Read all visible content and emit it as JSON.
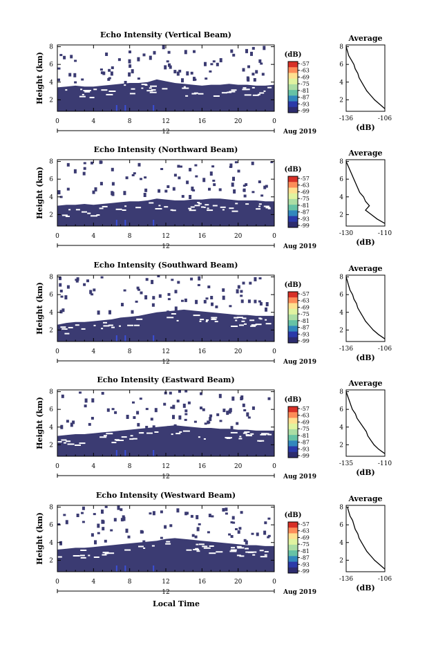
{
  "chart_data": [
    {
      "type": "heatmap",
      "title": "Echo Intensity (Vertical Beam)",
      "ylabel": "Height (km)",
      "x_ticks": [
        "0",
        "4",
        "8",
        "12",
        "16",
        "20",
        "0"
      ],
      "x_tick_values": [
        0,
        4,
        8,
        12,
        16,
        20,
        24
      ],
      "date_tick": "12",
      "date_label": "Aug 2019",
      "y_ticks": [
        "2",
        "4",
        "6",
        "8"
      ],
      "y_tick_values": [
        2,
        4,
        6,
        8
      ],
      "xlim": [
        0,
        24
      ],
      "ylim": [
        0.7,
        8.2
      ],
      "colorbar": {
        "unit": "(dB)",
        "labels": [
          "-57",
          "-63",
          "-69",
          "-75",
          "-81",
          "-87",
          "-93",
          "-99"
        ]
      },
      "echo_top_km": [
        3.4,
        3.5,
        3.6,
        3.5,
        3.5,
        3.6,
        3.7,
        3.8,
        3.9,
        3.9,
        4.0,
        4.3,
        4.1,
        3.9,
        3.8,
        3.7,
        3.6,
        3.7,
        3.7,
        3.8,
        3.7,
        3.7,
        3.6,
        3.6,
        3.7
      ],
      "profile": {
        "title": "Average",
        "xlabel": "(dB)",
        "x_ticks": [
          "-136",
          "-106"
        ],
        "x_tick_values": [
          -136,
          -106
        ],
        "xlim": [
          -136,
          -106
        ],
        "ylim": [
          0.7,
          8.2
        ],
        "y_ticks": [
          "2",
          "4",
          "6",
          "8"
        ],
        "height_km": [
          8.0,
          7.5,
          7.0,
          6.5,
          6.0,
          5.5,
          5.0,
          4.5,
          4.0,
          3.5,
          3.0,
          2.5,
          2.0,
          1.5,
          1.0
        ],
        "values_db": [
          -136,
          -135,
          -134,
          -132,
          -130,
          -129,
          -127,
          -126,
          -124,
          -122,
          -120,
          -117,
          -114,
          -110,
          -106
        ]
      }
    },
    {
      "type": "heatmap",
      "title": "Echo Intensity (Northward Beam)",
      "ylabel": "Height (km)",
      "x_ticks": [
        "0",
        "4",
        "8",
        "12",
        "16",
        "20",
        "0"
      ],
      "x_tick_values": [
        0,
        4,
        8,
        12,
        16,
        20,
        24
      ],
      "date_tick": "12",
      "date_label": "Aug 2019",
      "y_ticks": [
        "2",
        "4",
        "6",
        "8"
      ],
      "y_tick_values": [
        2,
        4,
        6,
        8
      ],
      "xlim": [
        0,
        24
      ],
      "ylim": [
        0.7,
        8.2
      ],
      "colorbar": {
        "unit": "(dB)",
        "labels": [
          "-57",
          "-63",
          "-69",
          "-75",
          "-81",
          "-87",
          "-93",
          "-99"
        ]
      },
      "echo_top_km": [
        3.0,
        3.1,
        3.1,
        3.2,
        3.1,
        3.2,
        3.3,
        3.4,
        3.5,
        3.5,
        3.6,
        3.8,
        3.7,
        3.6,
        3.6,
        3.7,
        3.7,
        3.8,
        3.8,
        3.7,
        3.6,
        3.6,
        3.6,
        3.5,
        3.5
      ],
      "profile": {
        "title": "Average",
        "xlabel": "(dB)",
        "x_ticks": [
          "-130",
          "-110"
        ],
        "x_tick_values": [
          -130,
          -110
        ],
        "xlim": [
          -130,
          -110
        ],
        "ylim": [
          0.7,
          8.2
        ],
        "y_ticks": [
          "2",
          "4",
          "6",
          "8"
        ],
        "height_km": [
          8.0,
          7.5,
          7.0,
          6.5,
          6.0,
          5.5,
          5.0,
          4.5,
          4.0,
          3.5,
          3.0,
          2.5,
          2.0,
          1.5,
          1.0
        ],
        "values_db": [
          -130,
          -129,
          -128,
          -127,
          -126,
          -125,
          -124,
          -123,
          -121,
          -120,
          -118,
          -120,
          -117,
          -114,
          -110
        ]
      }
    },
    {
      "type": "heatmap",
      "title": "Echo Intensity (Southward Beam)",
      "ylabel": "Height (km)",
      "x_ticks": [
        "0",
        "4",
        "8",
        "12",
        "16",
        "20",
        "0"
      ],
      "x_tick_values": [
        0,
        4,
        8,
        12,
        16,
        20,
        24
      ],
      "date_tick": "12",
      "date_label": "Aug 2019",
      "y_ticks": [
        "2",
        "4",
        "6",
        "8"
      ],
      "y_tick_values": [
        2,
        4,
        6,
        8
      ],
      "xlim": [
        0,
        24
      ],
      "ylim": [
        0.7,
        8.2
      ],
      "colorbar": {
        "unit": "(dB)",
        "labels": [
          "-57",
          "-63",
          "-69",
          "-75",
          "-81",
          "-87",
          "-93",
          "-99"
        ]
      },
      "echo_top_km": [
        2.6,
        2.8,
        2.9,
        2.9,
        3.0,
        3.1,
        3.2,
        3.4,
        3.5,
        3.6,
        3.8,
        4.0,
        4.1,
        4.2,
        4.3,
        4.2,
        4.1,
        4.0,
        3.9,
        3.8,
        3.7,
        3.7,
        3.6,
        3.6,
        3.6
      ],
      "profile": {
        "title": "Average",
        "xlabel": "(dB)",
        "x_ticks": [
          "-136",
          "-106"
        ],
        "x_tick_values": [
          -136,
          -106
        ],
        "xlim": [
          -136,
          -106
        ],
        "ylim": [
          0.7,
          8.2
        ],
        "y_ticks": [
          "2",
          "4",
          "6",
          "8"
        ],
        "height_km": [
          8.0,
          7.5,
          7.0,
          6.5,
          6.0,
          5.5,
          5.0,
          4.5,
          4.0,
          3.5,
          3.0,
          2.5,
          2.0,
          1.5,
          1.0
        ],
        "values_db": [
          -136,
          -135,
          -134,
          -133,
          -131,
          -130,
          -128,
          -127,
          -125,
          -123,
          -121,
          -118,
          -115,
          -111,
          -106
        ]
      }
    },
    {
      "type": "heatmap",
      "title": "Echo Intensity (Eastward Beam)",
      "ylabel": "Height (km)",
      "x_ticks": [
        "0",
        "4",
        "8",
        "12",
        "16",
        "20",
        "0"
      ],
      "x_tick_values": [
        0,
        4,
        8,
        12,
        16,
        20,
        24
      ],
      "date_tick": "12",
      "date_label": "Aug 2019",
      "y_ticks": [
        "2",
        "4",
        "6",
        "8"
      ],
      "y_tick_values": [
        2,
        4,
        6,
        8
      ],
      "xlim": [
        0,
        24
      ],
      "ylim": [
        0.7,
        8.2
      ],
      "colorbar": {
        "unit": "(dB)",
        "labels": [
          "-57",
          "-63",
          "-69",
          "-75",
          "-81",
          "-87",
          "-93",
          "-99"
        ]
      },
      "echo_top_km": [
        3.0,
        3.1,
        3.2,
        3.2,
        3.3,
        3.4,
        3.5,
        3.6,
        3.7,
        3.8,
        3.9,
        4.0,
        4.1,
        4.2,
        4.1,
        4.0,
        3.9,
        3.9,
        3.8,
        3.8,
        3.7,
        3.7,
        3.6,
        3.6,
        3.6
      ],
      "profile": {
        "title": "Average",
        "xlabel": "(dB)",
        "x_ticks": [
          "-135",
          "-110"
        ],
        "x_tick_values": [
          -135,
          -110
        ],
        "xlim": [
          -135,
          -110
        ],
        "ylim": [
          0.7,
          8.2
        ],
        "y_ticks": [
          "2",
          "4",
          "6",
          "8"
        ],
        "height_km": [
          8.0,
          7.5,
          7.0,
          6.5,
          6.0,
          5.5,
          5.0,
          4.5,
          4.0,
          3.5,
          3.0,
          2.5,
          2.0,
          1.5,
          1.0
        ],
        "values_db": [
          -135,
          -134,
          -133,
          -132,
          -131,
          -129,
          -128,
          -126,
          -124,
          -122,
          -121,
          -119,
          -117,
          -114,
          -110
        ]
      }
    },
    {
      "type": "heatmap",
      "title": "Echo Intensity (Westward Beam)",
      "ylabel": "Height (km)",
      "x_ticks": [
        "0",
        "4",
        "8",
        "12",
        "16",
        "20",
        "0"
      ],
      "x_tick_values": [
        0,
        4,
        8,
        12,
        16,
        20,
        24
      ],
      "date_tick": "12",
      "date_label": "Aug 2019",
      "xlabel": "Local Time",
      "y_ticks": [
        "2",
        "4",
        "6",
        "8"
      ],
      "y_tick_values": [
        2,
        4,
        6,
        8
      ],
      "xlim": [
        0,
        24
      ],
      "ylim": [
        0.7,
        8.2
      ],
      "colorbar": {
        "unit": "(dB)",
        "labels": [
          "-57",
          "-63",
          "-69",
          "-75",
          "-81",
          "-87",
          "-93",
          "-99"
        ]
      },
      "echo_top_km": [
        3.2,
        3.3,
        3.4,
        3.4,
        3.5,
        3.6,
        3.7,
        3.8,
        3.9,
        4.0,
        4.1,
        4.2,
        4.4,
        4.5,
        4.4,
        4.3,
        4.2,
        4.1,
        4.0,
        3.9,
        3.8,
        3.7,
        3.7,
        3.6,
        3.6
      ],
      "profile": {
        "title": "Average",
        "xlabel": "(dB)",
        "x_ticks": [
          "-136",
          "-106"
        ],
        "x_tick_values": [
          -136,
          -106
        ],
        "xlim": [
          -136,
          -106
        ],
        "ylim": [
          0.7,
          8.2
        ],
        "y_ticks": [
          "2",
          "4",
          "6",
          "8"
        ],
        "height_km": [
          8.0,
          7.5,
          7.0,
          6.5,
          6.0,
          5.5,
          5.0,
          4.5,
          4.0,
          3.5,
          3.0,
          2.5,
          2.0,
          1.5,
          1.0
        ],
        "values_db": [
          -135,
          -134,
          -133,
          -131,
          -130,
          -129,
          -127,
          -126,
          -124,
          -122,
          -120,
          -117,
          -114,
          -110,
          -106
        ]
      }
    }
  ],
  "colors": {
    "echo": "#3b3b72",
    "colorscale": [
      "#d73027",
      "#fc8d59",
      "#fee090",
      "#e0f3a0",
      "#abdda4",
      "#66c2a5",
      "#3288bd",
      "#2b3aa8",
      "#2d2c6e"
    ],
    "axis": "#000000",
    "background": "#ffffff"
  }
}
